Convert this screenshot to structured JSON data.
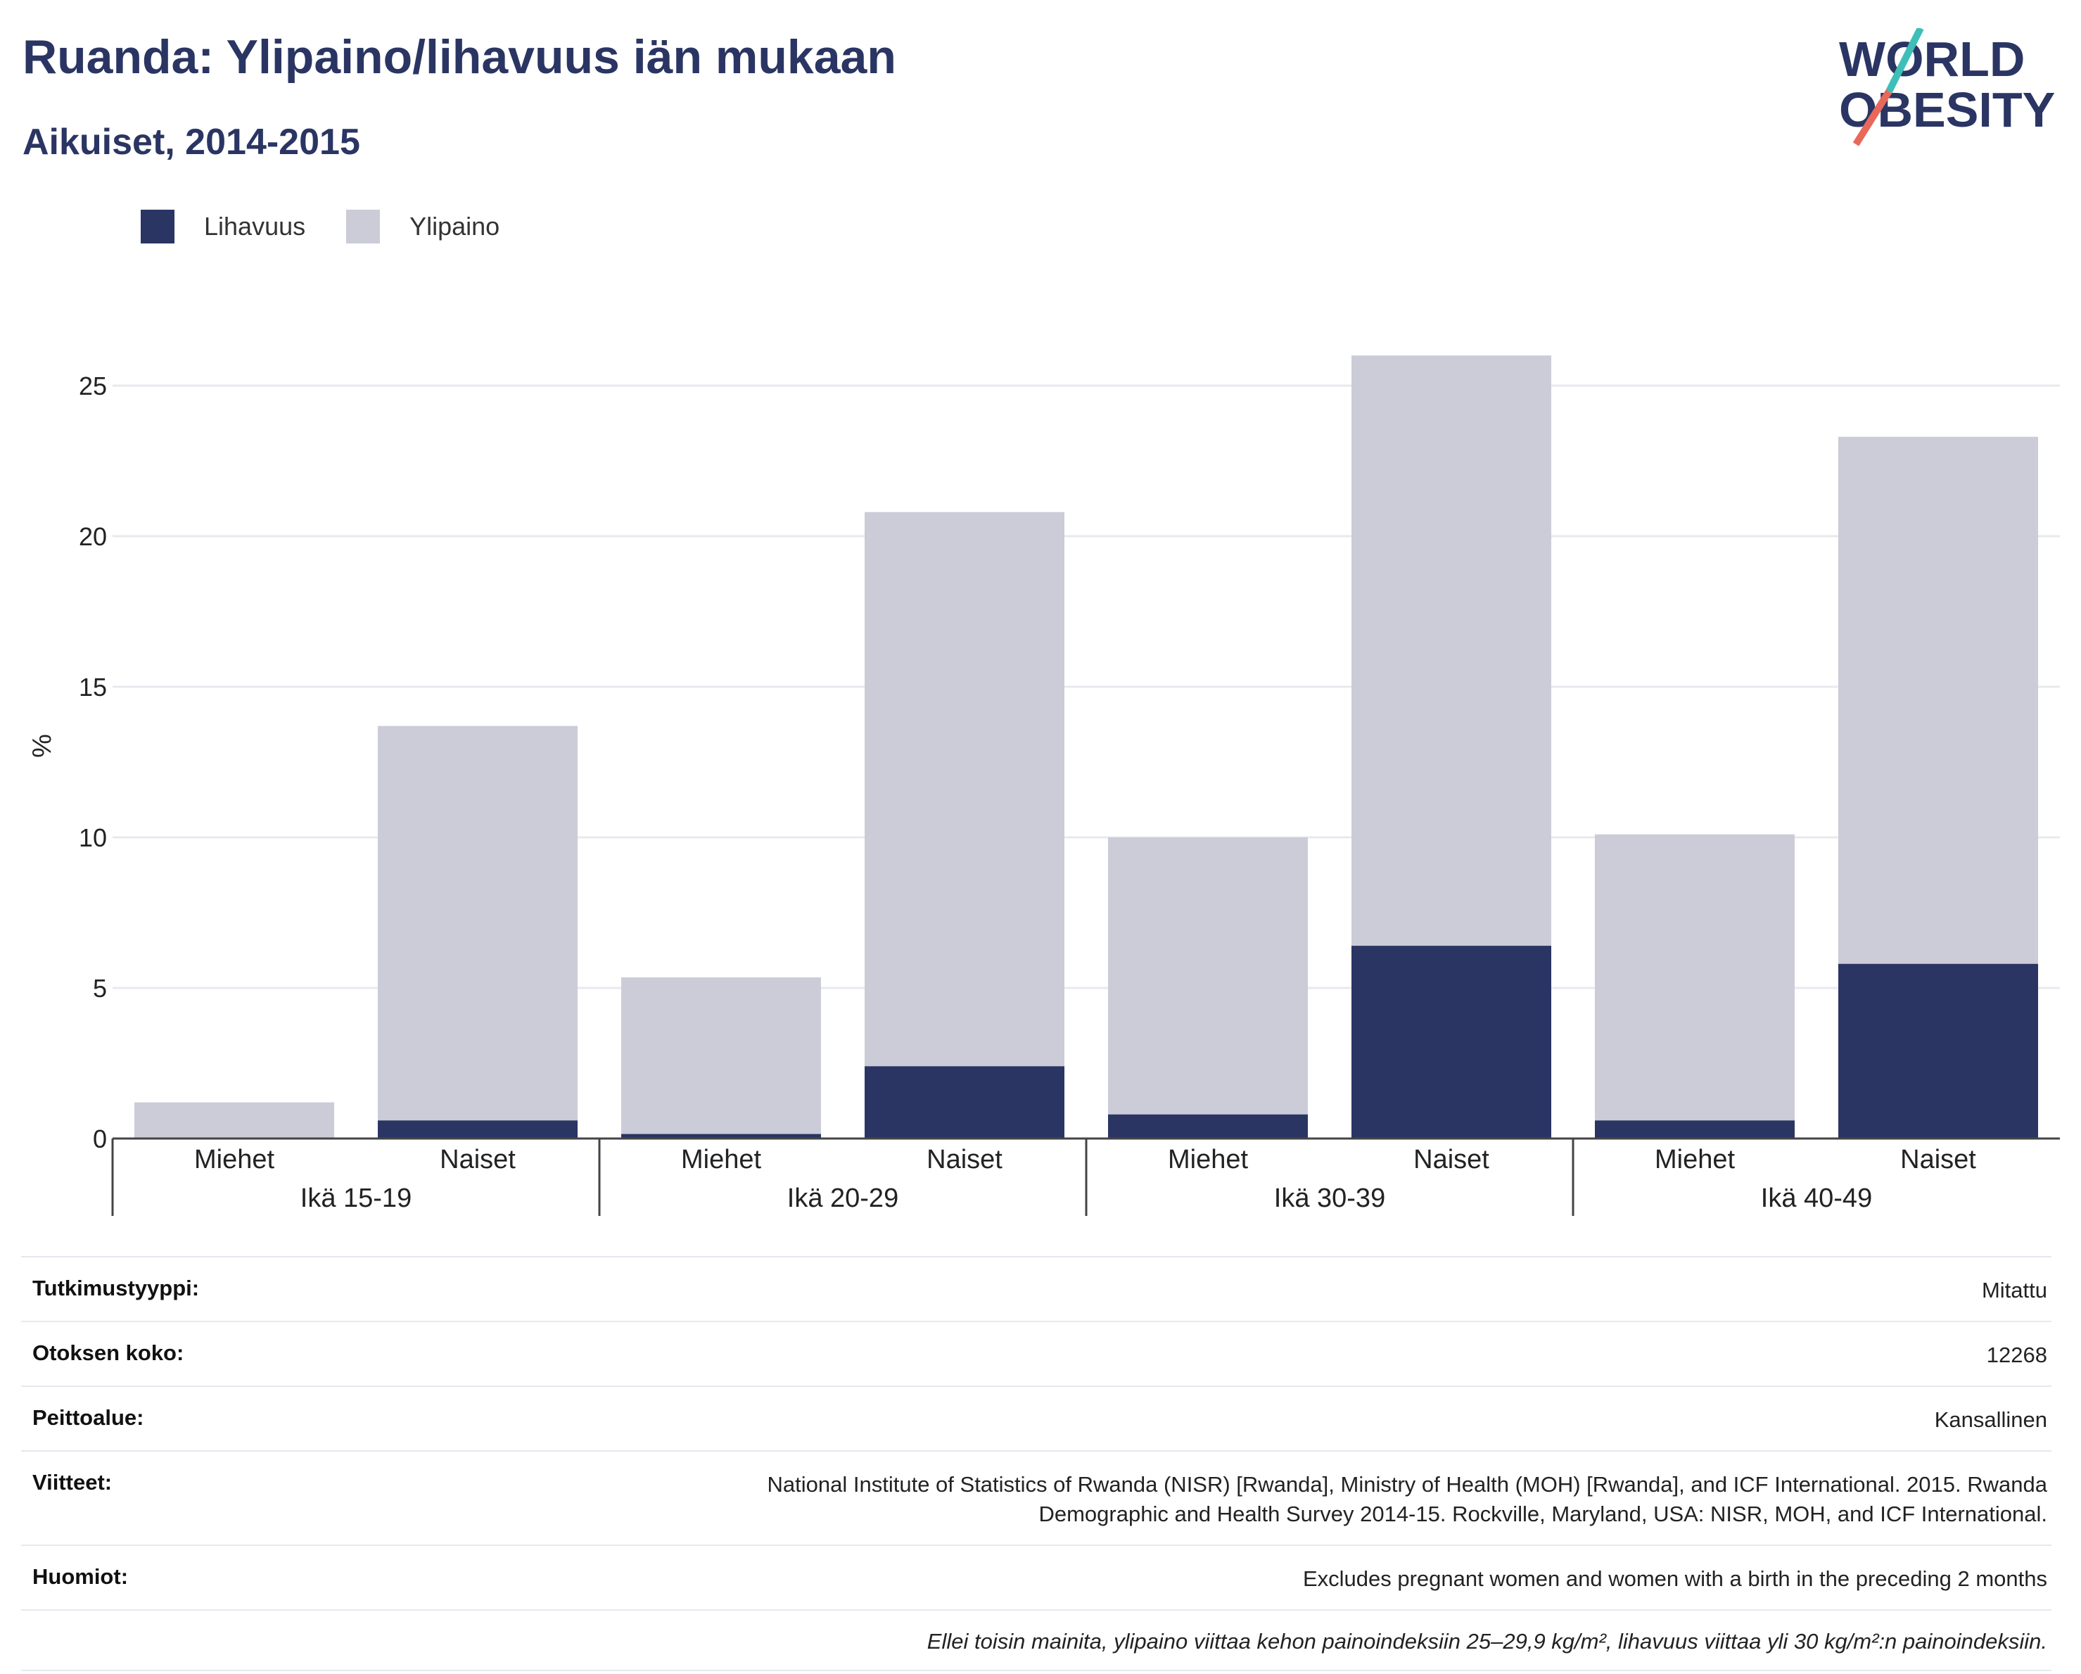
{
  "header": {
    "title": "Ruanda: Ylipaino/lihavuus iän mukaan",
    "subtitle": "Aikuiset, 2014-2015"
  },
  "logo": {
    "line1": "WORLD",
    "line2": "OBESITY"
  },
  "colors": {
    "obesity": "#2a3563",
    "overweight": "#cbccd8",
    "title": "#2a3563",
    "logo_teal": "#3dbfb8",
    "logo_red": "#e8685a"
  },
  "chart_data": {
    "type": "bar",
    "stacked": true,
    "ylabel": "%",
    "ylim": [
      0,
      27.5
    ],
    "yticks": [
      0,
      5,
      10,
      15,
      20,
      25
    ],
    "grid": true,
    "legend_position": "top-left",
    "groups": [
      "Ikä 15-19",
      "Ikä 20-29",
      "Ikä 30-39",
      "Ikä 40-49"
    ],
    "categories": [
      "Miehet",
      "Naiset",
      "Miehet",
      "Naiset",
      "Miehet",
      "Naiset",
      "Miehet",
      "Naiset"
    ],
    "series": [
      {
        "name": "Lihavuus",
        "color": "#2a3563",
        "values": [
          0.0,
          0.6,
          0.15,
          2.4,
          0.8,
          6.4,
          0.6,
          5.8
        ]
      },
      {
        "name": "Ylipaino",
        "color": "#cbccd8",
        "values": [
          1.2,
          13.1,
          5.2,
          18.4,
          9.2,
          19.6,
          9.5,
          17.5
        ]
      }
    ]
  },
  "meta": {
    "rows": [
      {
        "label": "Tutkimustyyppi:",
        "value": "Mitattu"
      },
      {
        "label": "Otoksen koko:",
        "value": "12268"
      },
      {
        "label": "Peittoalue:",
        "value": "Kansallinen"
      },
      {
        "label": "Viitteet:",
        "value_line1": "National Institute of Statistics of Rwanda (NISR) [Rwanda], Ministry of Health (MOH) [Rwanda], and ICF International. 2015. Rwanda",
        "value_line2": "Demographic and Health Survey 2014-15. Rockville, Maryland, USA: NISR, MOH, and ICF International."
      },
      {
        "label": "Huomiot:",
        "value": "Excludes pregnant women and women with a birth in the preceding 2 months"
      }
    ],
    "footnote": "Ellei toisin mainita, ylipaino viittaa kehon painoindeksiin 25–29,9 kg/m², lihavuus viittaa yli 30 kg/m²:n painoindeksiin."
  }
}
